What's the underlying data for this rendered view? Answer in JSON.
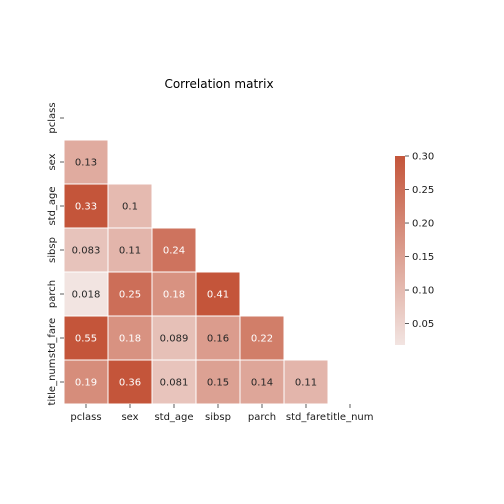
{
  "chart_data": {
    "type": "heatmap",
    "title": "Correlation matrix",
    "variables": [
      "pclass",
      "sex",
      "std_age",
      "sibsp",
      "parch",
      "std_fare",
      "title_num"
    ],
    "mask": "upper_triangle_and_diagonal",
    "matrix": [
      [
        null,
        null,
        null,
        null,
        null,
        null,
        null
      ],
      [
        0.13,
        null,
        null,
        null,
        null,
        null,
        null
      ],
      [
        0.33,
        0.1,
        null,
        null,
        null,
        null,
        null
      ],
      [
        0.083,
        0.11,
        0.24,
        null,
        null,
        null,
        null
      ],
      [
        0.018,
        0.25,
        0.18,
        0.41,
        null,
        null,
        null
      ],
      [
        0.55,
        0.18,
        0.089,
        0.16,
        0.22,
        null,
        null
      ],
      [
        0.19,
        0.36,
        0.081,
        0.15,
        0.14,
        0.11,
        null
      ]
    ],
    "annotations": [
      [
        null,
        null,
        null,
        null,
        null,
        null,
        null
      ],
      [
        "0.13",
        null,
        null,
        null,
        null,
        null,
        null
      ],
      [
        "0.33",
        "0.1",
        null,
        null,
        null,
        null,
        null
      ],
      [
        "0.083",
        "0.11",
        "0.24",
        null,
        null,
        null,
        null
      ],
      [
        "0.018",
        "0.25",
        "0.18",
        "0.41",
        null,
        null,
        null
      ],
      [
        "0.55",
        "0.18",
        "0.089",
        "0.16",
        "0.22",
        null,
        null
      ],
      [
        "0.19",
        "0.36",
        "0.081",
        "0.15",
        "0.14",
        "0.11",
        null
      ]
    ],
    "colorbar": {
      "vmin": 0.018,
      "vmax": 0.3,
      "ticks": [
        "0.05",
        "0.10",
        "0.15",
        "0.20",
        "0.25",
        "0.30"
      ],
      "tick_values": [
        0.05,
        0.1,
        0.15,
        0.2,
        0.25,
        0.3
      ],
      "colors": {
        "low": "#f2e4e1",
        "high": "#c4553a"
      }
    },
    "grid": false
  }
}
